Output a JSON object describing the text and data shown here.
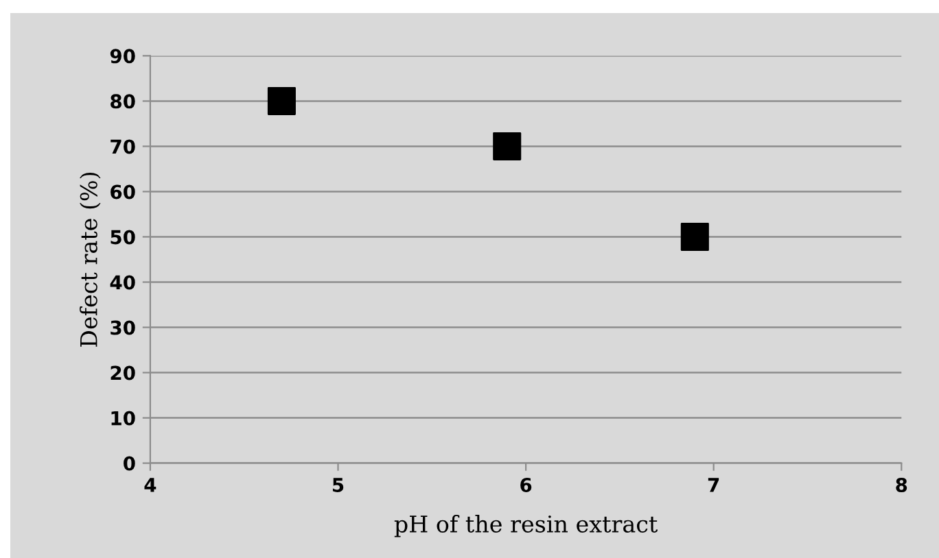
{
  "chart_data": {
    "type": "scatter",
    "xlabel": "pH of the resin extract",
    "ylabel": "Defect rate (%)",
    "x": [
      4.7,
      5.9,
      6.9
    ],
    "values": [
      80,
      70,
      50
    ],
    "color": "#000000",
    "marker": "square",
    "xlim": [
      4,
      8
    ],
    "xticks": [
      4,
      5,
      6,
      7,
      8
    ],
    "ylim": [
      0,
      90
    ],
    "yticks": [
      0,
      10,
      20,
      30,
      40,
      50,
      60,
      70,
      80,
      90
    ],
    "grid": "y",
    "legend": false
  }
}
